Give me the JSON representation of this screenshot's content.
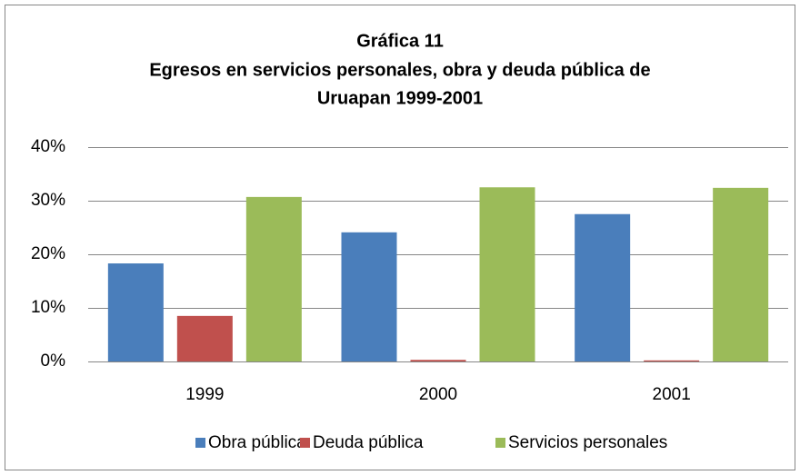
{
  "chart_data": {
    "type": "bar",
    "title": [
      "Gráfica 11",
      "Egresos en servicios personales, obra y deuda pública de",
      "Uruapan 1999-2001"
    ],
    "categories": [
      "1999",
      "2000",
      "2001"
    ],
    "series": [
      {
        "name": "Obra pública",
        "color": "#4a7ebb",
        "values": [
          18.3,
          24.1,
          27.5
        ]
      },
      {
        "name": "Deuda pública",
        "color": "#c0504d",
        "values": [
          8.5,
          0.3,
          0.2
        ]
      },
      {
        "name": "Servicios personales",
        "color": "#9bbb59",
        "values": [
          30.7,
          32.5,
          32.4
        ]
      }
    ],
    "ylim": [
      0,
      40
    ],
    "yticks": [
      {
        "value": 0,
        "label": "0%"
      },
      {
        "value": 10,
        "label": "10%"
      },
      {
        "value": 20,
        "label": "20%"
      },
      {
        "value": 30,
        "label": "30%"
      },
      {
        "value": 40,
        "label": "40%"
      }
    ],
    "grid": true,
    "legend": "bottom"
  }
}
